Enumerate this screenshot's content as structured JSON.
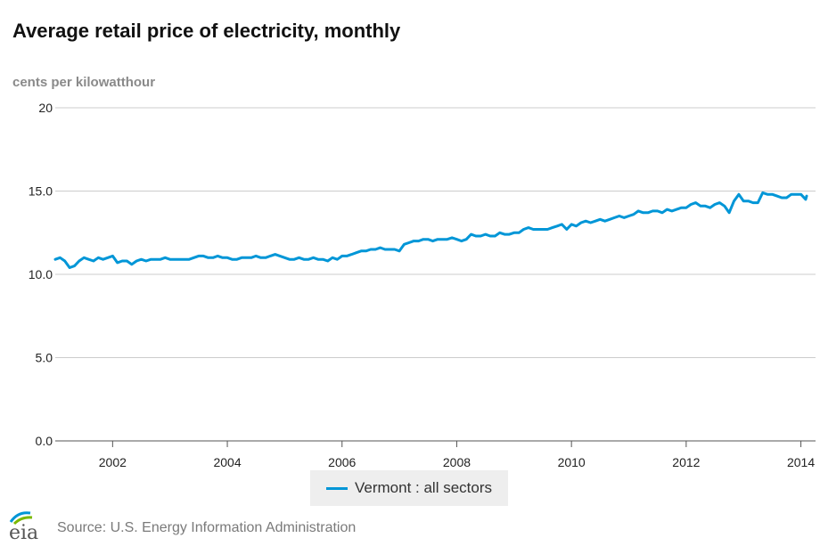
{
  "title": "Average retail price of electricity, monthly",
  "unit_label": "cents per kilowatthour",
  "source": "Source: U.S. Energy Information Administration",
  "logo_text": "eia",
  "colors": {
    "series": "#0096d7",
    "grid": "#cccccc",
    "axis": "#333333",
    "text": "#222222"
  },
  "chart_data": {
    "type": "line",
    "title": "Average retail price of electricity, monthly",
    "ylabel": "cents per kilowatthour",
    "xlabel": "",
    "ylim": [
      0,
      20
    ],
    "xlim": [
      2001.0,
      2014.1
    ],
    "y_ticks": [
      0.0,
      5.0,
      10.0,
      15.0,
      20
    ],
    "y_tick_labels": [
      "0.0",
      "5.0",
      "10.0",
      "15.0",
      "20"
    ],
    "x_ticks": [
      2002,
      2004,
      2006,
      2008,
      2010,
      2012,
      2014
    ],
    "x_tick_labels": [
      "2002",
      "2004",
      "2006",
      "2008",
      "2010",
      "2012",
      "2014"
    ],
    "grid": true,
    "legend_position": "bottom-center",
    "series": [
      {
        "name": "Vermont : all sectors",
        "start": "2001-01",
        "frequency": "monthly",
        "values": [
          10.9,
          11.0,
          10.8,
          10.4,
          10.5,
          10.8,
          11.0,
          10.9,
          10.8,
          11.0,
          10.9,
          11.0,
          11.1,
          10.7,
          10.8,
          10.8,
          10.6,
          10.8,
          10.9,
          10.8,
          10.9,
          10.9,
          10.9,
          11.0,
          10.9,
          10.9,
          10.9,
          10.9,
          10.9,
          11.0,
          11.1,
          11.1,
          11.0,
          11.0,
          11.1,
          11.0,
          11.0,
          10.9,
          10.9,
          11.0,
          11.0,
          11.0,
          11.1,
          11.0,
          11.0,
          11.1,
          11.2,
          11.1,
          11.0,
          10.9,
          10.9,
          11.0,
          10.9,
          10.9,
          11.0,
          10.9,
          10.9,
          10.8,
          11.0,
          10.9,
          11.1,
          11.1,
          11.2,
          11.3,
          11.4,
          11.4,
          11.5,
          11.5,
          11.6,
          11.5,
          11.5,
          11.5,
          11.4,
          11.8,
          11.9,
          12.0,
          12.0,
          12.1,
          12.1,
          12.0,
          12.1,
          12.1,
          12.1,
          12.2,
          12.1,
          12.0,
          12.1,
          12.4,
          12.3,
          12.3,
          12.4,
          12.3,
          12.3,
          12.5,
          12.4,
          12.4,
          12.5,
          12.5,
          12.7,
          12.8,
          12.7,
          12.7,
          12.7,
          12.7,
          12.8,
          12.9,
          13.0,
          12.7,
          13.0,
          12.9,
          13.1,
          13.2,
          13.1,
          13.2,
          13.3,
          13.2,
          13.3,
          13.4,
          13.5,
          13.4,
          13.5,
          13.6,
          13.8,
          13.7,
          13.7,
          13.8,
          13.8,
          13.7,
          13.9,
          13.8,
          13.9,
          14.0,
          14.0,
          14.2,
          14.3,
          14.1,
          14.1,
          14.0,
          14.2,
          14.3,
          14.1,
          13.7,
          14.4,
          14.8,
          14.4,
          14.4,
          14.3,
          14.3,
          14.9,
          14.8,
          14.8,
          14.7,
          14.6,
          14.6,
          14.8,
          14.8,
          14.8,
          14.5,
          14.7
        ]
      }
    ]
  }
}
